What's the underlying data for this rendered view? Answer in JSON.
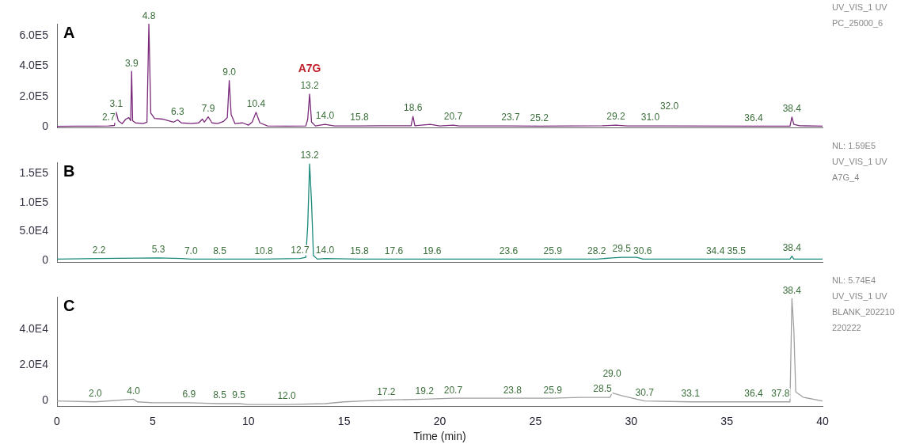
{
  "chart_data": [
    {
      "type": "line",
      "title": "A",
      "xlim": [
        0,
        40
      ],
      "xticks": [
        0,
        5,
        10,
        15,
        20,
        25,
        30,
        35,
        40
      ],
      "ylim": [
        -5000,
        680000
      ],
      "yticks": [
        {
          "value": 0,
          "label": "0"
        },
        {
          "value": 200000,
          "label": "2.0E5"
        },
        {
          "value": 400000,
          "label": "4.0E5"
        },
        {
          "value": 600000,
          "label": "6.0E5"
        }
      ],
      "tick_labels": "y",
      "series": [
        {
          "color": "#7b2a7b",
          "x": [
            0,
            1,
            2,
            2.7,
            3.0,
            3.1,
            3.2,
            3.4,
            3.6,
            3.75,
            3.85,
            3.9,
            3.95,
            4.1,
            4.5,
            4.7,
            4.8,
            4.9,
            5.1,
            5.5,
            5.8,
            6.1,
            6.3,
            6.5,
            7.0,
            7.4,
            7.6,
            7.7,
            7.9,
            8.1,
            8.4,
            8.7,
            8.9,
            9.0,
            9.1,
            9.3,
            9.7,
            10.0,
            10.2,
            10.4,
            10.6,
            11,
            12,
            13.0,
            13.1,
            13.2,
            13.3,
            13.5,
            14.0,
            14.5,
            15.8,
            17,
            18.5,
            18.6,
            18.7,
            19.5,
            20,
            20.7,
            21,
            23.7,
            25.2,
            28.5,
            29.2,
            29.8,
            31,
            32,
            36.4,
            38.3,
            38.4,
            38.5,
            38.8,
            40
          ],
          "values": [
            2000,
            3000,
            3000,
            5000,
            8000,
            95000,
            40000,
            20000,
            50000,
            60000,
            40000,
            365000,
            40000,
            25000,
            20000,
            30000,
            677000,
            90000,
            55000,
            50000,
            40000,
            30000,
            45000,
            25000,
            20000,
            25000,
            50000,
            30000,
            65000,
            25000,
            20000,
            35000,
            60000,
            305000,
            80000,
            20000,
            25000,
            10000,
            30000,
            95000,
            25000,
            5000,
            4000,
            5000,
            50000,
            215000,
            30000,
            5000,
            15000,
            5000,
            5000,
            6000,
            6000,
            68000,
            6000,
            15000,
            5000,
            10000,
            5000,
            5000,
            4000,
            6000,
            10000,
            5000,
            5000,
            5000,
            4000,
            4000,
            64000,
            15000,
            6000,
            4000
          ]
        }
      ],
      "annotations": [
        "UV_VIS_1 UV",
        "PC_25000_6",
        {
          "text": "2.7",
          "x": 2.7,
          "y": 5000
        },
        {
          "text": "3.1",
          "x": 3.1,
          "y": 95000
        },
        {
          "text": "3.9",
          "x": 3.9,
          "y": 365000
        },
        {
          "text": "4.8",
          "x": 4.8,
          "y": 677000
        },
        {
          "text": "6.3",
          "x": 6.3,
          "y": 45000
        },
        {
          "text": "7.9",
          "x": 7.9,
          "y": 65000
        },
        {
          "text": "9.0",
          "x": 9.0,
          "y": 305000
        },
        {
          "text": "10.4",
          "x": 10.4,
          "y": 95000
        },
        {
          "text": "13.2",
          "x": 13.2,
          "y": 215000
        },
        {
          "text": "A7G",
          "x": 13.2,
          "y": 215000
        },
        {
          "text": "14.0",
          "x": 14.0,
          "y": 15000
        },
        {
          "text": "15.8",
          "x": 15.8,
          "y": 5000
        },
        {
          "text": "18.6",
          "x": 18.6,
          "y": 68000
        },
        {
          "text": "20.7",
          "x": 20.7,
          "y": 10000
        },
        {
          "text": "23.7",
          "x": 23.7,
          "y": 5000
        },
        {
          "text": "25.2",
          "x": 25.2,
          "y": 4000
        },
        {
          "text": "29.2",
          "x": 29.2,
          "y": 10000
        },
        {
          "text": "31.0",
          "x": 31.0,
          "y": 5000
        },
        {
          "text": "32.0",
          "x": 32.0,
          "y": 5000
        },
        {
          "text": "36.4",
          "x": 36.4,
          "y": 4000
        },
        {
          "text": "38.4",
          "x": 38.4,
          "y": 64000
        }
      ]
    },
    {
      "type": "line",
      "title": "B",
      "xlim": [
        0,
        40
      ],
      "xticks": [
        0,
        5,
        10,
        15,
        20,
        25,
        30,
        35,
        40
      ],
      "ylim": [
        -3000,
        170000
      ],
      "yticks": [
        {
          "value": 0,
          "label": "0"
        },
        {
          "value": 50000,
          "label": "5.0E4"
        },
        {
          "value": 100000,
          "label": "1.0E5"
        },
        {
          "value": 150000,
          "label": "1.5E5"
        }
      ],
      "tick_labels": "y",
      "series": [
        {
          "color": "#1a8a7a",
          "x": [
            0,
            2.2,
            5.3,
            6.5,
            7,
            8.5,
            10.8,
            12.7,
            13.0,
            13.1,
            13.2,
            13.3,
            13.4,
            13.6,
            14,
            15.8,
            17.6,
            19.6,
            23.6,
            25.9,
            28.2,
            29.0,
            29.5,
            30.3,
            30.6,
            34.4,
            35.5,
            38.3,
            38.4,
            38.5,
            40
          ],
          "values": [
            2000,
            3000,
            4000,
            3000,
            2000,
            2000,
            2000,
            3000,
            5000,
            60000,
            167000,
            100000,
            8000,
            2000,
            3000,
            2000,
            2000,
            2000,
            2000,
            2000,
            2000,
            4000,
            5000,
            5000,
            2000,
            2000,
            2000,
            2000,
            7000,
            2000,
            2000
          ]
        }
      ],
      "annotations": [
        "NL: 1.59E5",
        "UV_VIS_1 UV",
        "A7G_4",
        {
          "text": "2.2",
          "x": 2.2,
          "y": 3000
        },
        {
          "text": "5.3",
          "x": 5.3,
          "y": 4000
        },
        {
          "text": "7.0",
          "x": 7.0,
          "y": 2000
        },
        {
          "text": "8.5",
          "x": 8.5,
          "y": 2000
        },
        {
          "text": "10.8",
          "x": 10.8,
          "y": 2000
        },
        {
          "text": "12.7",
          "x": 12.7,
          "y": 3000
        },
        {
          "text": "13.2",
          "x": 13.2,
          "y": 167000
        },
        {
          "text": "14.0",
          "x": 14.0,
          "y": 3000
        },
        {
          "text": "15.8",
          "x": 15.8,
          "y": 2000
        },
        {
          "text": "17.6",
          "x": 17.6,
          "y": 2000
        },
        {
          "text": "19.6",
          "x": 19.6,
          "y": 2000
        },
        {
          "text": "23.6",
          "x": 23.6,
          "y": 2000
        },
        {
          "text": "25.9",
          "x": 25.9,
          "y": 2000
        },
        {
          "text": "28.2",
          "x": 28.2,
          "y": 2000
        },
        {
          "text": "29.5",
          "x": 29.5,
          "y": 5000
        },
        {
          "text": "30.6",
          "x": 30.6,
          "y": 2000
        },
        {
          "text": "34.4",
          "x": 34.4,
          "y": 2000
        },
        {
          "text": "35.5",
          "x": 35.5,
          "y": 2000
        },
        {
          "text": "38.4",
          "x": 38.4,
          "y": 7000
        }
      ]
    },
    {
      "type": "line",
      "title": "C",
      "xlabel": "Time (min)",
      "xlim": [
        0,
        40
      ],
      "xticks": [
        0,
        5,
        10,
        15,
        20,
        25,
        30,
        35,
        40
      ],
      "ylim": [
        -3000,
        58000
      ],
      "yticks": [
        {
          "value": 0,
          "label": "0"
        },
        {
          "value": 20000,
          "label": "2.0E4"
        },
        {
          "value": 40000,
          "label": "4.0E4"
        }
      ],
      "series": [
        {
          "color": "#a0a0a0",
          "x": [
            0,
            2,
            4.0,
            4.2,
            5,
            6.9,
            8.5,
            9.5,
            10,
            12,
            14,
            15,
            16,
            17.2,
            19.2,
            20.7,
            23.8,
            25.9,
            27.3,
            28.5,
            28.9,
            29.0,
            29.5,
            30.7,
            33.1,
            36.4,
            37.8,
            38.3,
            38.4,
            38.5,
            38.6,
            39,
            40
          ],
          "values": [
            0,
            -500,
            1000,
            -500,
            -1000,
            -1000,
            -1500,
            -1500,
            -2000,
            -2000,
            -1500,
            -500,
            0,
            500,
            1000,
            1500,
            1500,
            1500,
            2000,
            2000,
            2000,
            4500,
            3000,
            0,
            -500,
            -500,
            -500,
            -500,
            57000,
            40000,
            5000,
            2000,
            0
          ]
        }
      ],
      "annotations": [
        "NL: 5.74E4",
        "UV_VIS_1 UV",
        "BLANK_202210",
        "220222",
        {
          "text": "2.0",
          "x": 2.0,
          "y": -500
        },
        {
          "text": "4.0",
          "x": 4.0,
          "y": 1000
        },
        {
          "text": "6.9",
          "x": 6.9,
          "y": -1000
        },
        {
          "text": "8.5",
          "x": 8.5,
          "y": -1500
        },
        {
          "text": "9.5",
          "x": 9.5,
          "y": -1500
        },
        {
          "text": "12.0",
          "x": 12.0,
          "y": -2000
        },
        {
          "text": "17.2",
          "x": 17.2,
          "y": 500
        },
        {
          "text": "19.2",
          "x": 19.2,
          "y": 1000
        },
        {
          "text": "20.7",
          "x": 20.7,
          "y": 1500
        },
        {
          "text": "23.8",
          "x": 23.8,
          "y": 1500
        },
        {
          "text": "25.9",
          "x": 25.9,
          "y": 1500
        },
        {
          "text": "28.5",
          "x": 28.5,
          "y": 2000
        },
        {
          "text": "29.0",
          "x": 29.0,
          "y": 4500
        },
        {
          "text": "30.7",
          "x": 30.7,
          "y": 0
        },
        {
          "text": "33.1",
          "x": 33.1,
          "y": -500
        },
        {
          "text": "36.4",
          "x": 36.4,
          "y": -500
        },
        {
          "text": "37.8",
          "x": 37.8,
          "y": -500
        },
        {
          "text": "38.4",
          "x": 38.4,
          "y": 57000
        }
      ]
    }
  ]
}
